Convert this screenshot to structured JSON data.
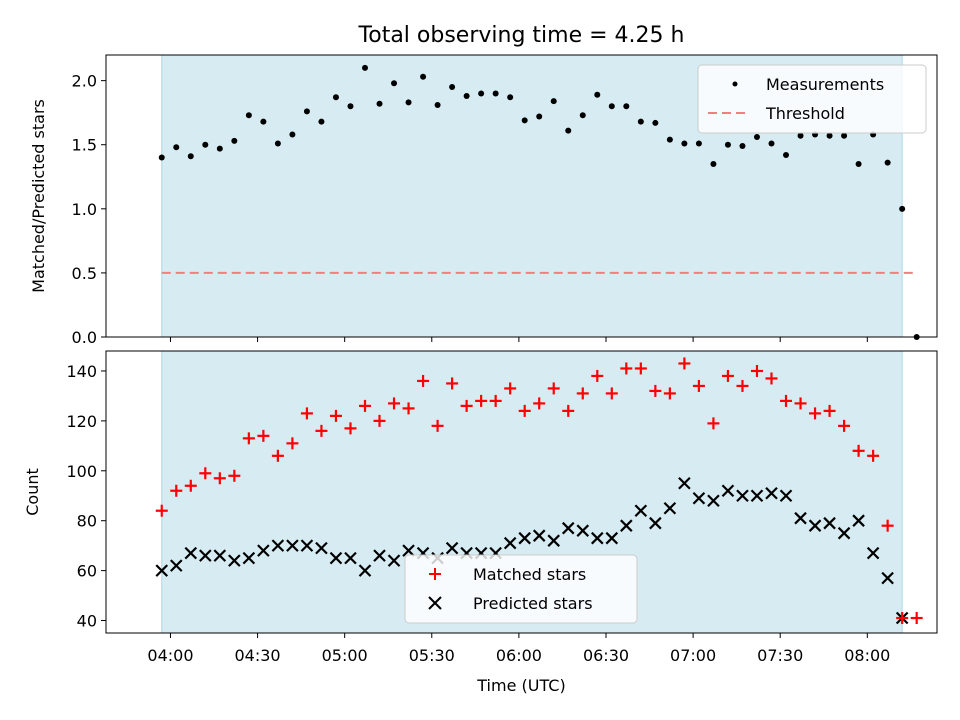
{
  "chart_data": [
    {
      "type": "scatter",
      "title": "Total observing time = 4.25 h",
      "xlabel": "",
      "ylabel": "Matched/Predicted stars",
      "ylim": [
        0,
        2.2
      ],
      "xlim_minutes": [
        3.63,
        8.4
      ],
      "yticks": [
        "0.0",
        "0.5",
        "1.0",
        "1.5",
        "2.0"
      ],
      "observing_window": {
        "start": "03:57",
        "end": "08:12",
        "color": "#add8e6"
      },
      "legend_position": "top-right",
      "series": [
        {
          "name": "Measurements",
          "marker": "dot",
          "color": "#000000",
          "x": [
            "03:57",
            "04:02",
            "04:07",
            "04:12",
            "04:17",
            "04:22",
            "04:27",
            "04:32",
            "04:37",
            "04:42",
            "04:47",
            "04:52",
            "04:57",
            "05:02",
            "05:07",
            "05:12",
            "05:17",
            "05:22",
            "05:27",
            "05:32",
            "05:37",
            "05:42",
            "05:47",
            "05:52",
            "05:57",
            "06:02",
            "06:07",
            "06:12",
            "06:17",
            "06:22",
            "06:27",
            "06:32",
            "06:37",
            "06:42",
            "06:47",
            "06:52",
            "06:57",
            "07:02",
            "07:07",
            "07:12",
            "07:17",
            "07:22",
            "07:27",
            "07:32",
            "07:37",
            "07:42",
            "07:47",
            "07:52",
            "07:57",
            "08:02",
            "08:07",
            "08:12",
            "08:17"
          ],
          "values": [
            1.4,
            1.48,
            1.41,
            1.5,
            1.47,
            1.53,
            1.73,
            1.68,
            1.51,
            1.58,
            1.76,
            1.68,
            1.87,
            1.8,
            2.1,
            1.82,
            1.98,
            1.83,
            2.03,
            1.81,
            1.95,
            1.88,
            1.9,
            1.9,
            1.87,
            1.69,
            1.72,
            1.84,
            1.61,
            1.73,
            1.89,
            1.8,
            1.8,
            1.68,
            1.67,
            1.54,
            1.51,
            1.51,
            1.35,
            1.5,
            1.49,
            1.56,
            1.51,
            1.42,
            1.57,
            1.58,
            1.57,
            1.57,
            1.35,
            1.58,
            1.36,
            1.0,
            0.0
          ]
        },
        {
          "name": "Threshold",
          "style": "dashed",
          "color": "#f08080",
          "x": [
            "03:57",
            "08:17"
          ],
          "values": [
            0.5,
            0.5
          ]
        }
      ]
    },
    {
      "type": "scatter",
      "title": "",
      "xlabel": "Time (UTC)",
      "ylabel": "Count",
      "ylim": [
        35,
        148
      ],
      "yticks": [
        "40",
        "60",
        "80",
        "100",
        "120",
        "140"
      ],
      "xticks": [
        "04:00",
        "04:30",
        "05:00",
        "05:30",
        "06:00",
        "06:30",
        "07:00",
        "07:30",
        "08:00"
      ],
      "observing_window": {
        "start": "03:57",
        "end": "08:12",
        "color": "#add8e6"
      },
      "legend_position": "bottom-center",
      "series": [
        {
          "name": "Matched stars",
          "marker": "plus",
          "color": "#ff0000",
          "x": [
            "03:57",
            "04:02",
            "04:07",
            "04:12",
            "04:17",
            "04:22",
            "04:27",
            "04:32",
            "04:37",
            "04:42",
            "04:47",
            "04:52",
            "04:57",
            "05:02",
            "05:07",
            "05:12",
            "05:17",
            "05:22",
            "05:27",
            "05:32",
            "05:37",
            "05:42",
            "05:47",
            "05:52",
            "05:57",
            "06:02",
            "06:07",
            "06:12",
            "06:17",
            "06:22",
            "06:27",
            "06:32",
            "06:37",
            "06:42",
            "06:47",
            "06:52",
            "06:57",
            "07:02",
            "07:07",
            "07:12",
            "07:17",
            "07:22",
            "07:27",
            "07:32",
            "07:37",
            "07:42",
            "07:47",
            "07:52",
            "07:57",
            "08:02",
            "08:07",
            "08:12",
            "08:17"
          ],
          "values": [
            84,
            92,
            94,
            99,
            97,
            98,
            113,
            114,
            106,
            111,
            123,
            116,
            122,
            117,
            126,
            120,
            127,
            125,
            136,
            118,
            135,
            126,
            128,
            128,
            133,
            124,
            127,
            133,
            124,
            131,
            138,
            131,
            141,
            141,
            132,
            131,
            143,
            134,
            119,
            138,
            134,
            140,
            137,
            128,
            127,
            123,
            124,
            118,
            108,
            106,
            78,
            41,
            41
          ]
        },
        {
          "name": "Predicted stars",
          "marker": "x",
          "color": "#000000",
          "x": [
            "03:57",
            "04:02",
            "04:07",
            "04:12",
            "04:17",
            "04:22",
            "04:27",
            "04:32",
            "04:37",
            "04:42",
            "04:47",
            "04:52",
            "04:57",
            "05:02",
            "05:07",
            "05:12",
            "05:17",
            "05:22",
            "05:27",
            "05:32",
            "05:37",
            "05:42",
            "05:47",
            "05:52",
            "05:57",
            "06:02",
            "06:07",
            "06:12",
            "06:17",
            "06:22",
            "06:27",
            "06:32",
            "06:37",
            "06:42",
            "06:47",
            "06:52",
            "06:57",
            "07:02",
            "07:07",
            "07:12",
            "07:17",
            "07:22",
            "07:27",
            "07:32",
            "07:37",
            "07:42",
            "07:47",
            "07:52",
            "07:57",
            "08:02",
            "08:07",
            "08:12"
          ],
          "values": [
            60,
            62,
            67,
            66,
            66,
            64,
            65,
            68,
            70,
            70,
            70,
            69,
            65,
            65,
            60,
            66,
            64,
            68,
            67,
            65,
            69,
            67,
            67,
            67,
            71,
            73,
            74,
            72,
            77,
            76,
            73,
            73,
            78,
            84,
            79,
            85,
            95,
            89,
            88,
            92,
            90,
            90,
            91,
            90,
            81,
            78,
            79,
            75,
            80,
            67,
            57,
            41
          ]
        }
      ]
    }
  ]
}
